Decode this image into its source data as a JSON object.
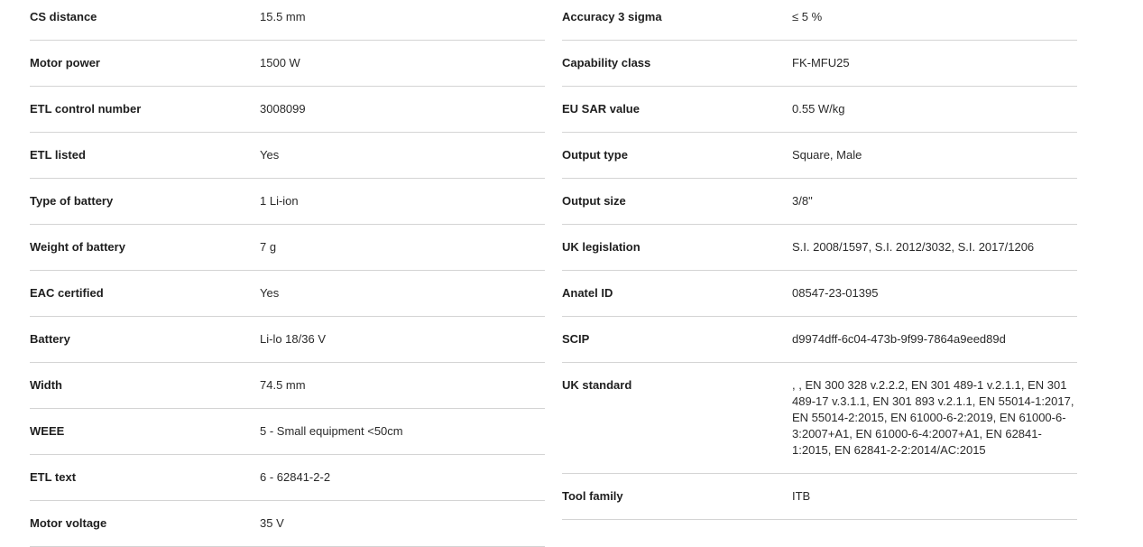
{
  "left": [
    {
      "label": "CS distance",
      "value": "15.5 mm"
    },
    {
      "label": "Motor power",
      "value": "1500 W"
    },
    {
      "label": "ETL control number",
      "value": "3008099"
    },
    {
      "label": "ETL listed",
      "value": "Yes"
    },
    {
      "label": "Type of battery",
      "value": "1 Li-ion"
    },
    {
      "label": "Weight of battery",
      "value": "7 g"
    },
    {
      "label": "EAC certified",
      "value": "Yes"
    },
    {
      "label": "Battery",
      "value": "Li-lo 18/36 V"
    },
    {
      "label": "Width",
      "value": "74.5 mm"
    },
    {
      "label": "WEEE",
      "value": "5 - Small equipment <50cm"
    },
    {
      "label": "ETL text",
      "value": "6 - 62841-2-2"
    },
    {
      "label": "Motor voltage",
      "value": "35 V"
    }
  ],
  "right": [
    {
      "label": "Accuracy 3 sigma",
      "value": "≤ 5 %"
    },
    {
      "label": "Capability class",
      "value": "FK-MFU25"
    },
    {
      "label": "EU SAR value",
      "value": "0.55 W/kg"
    },
    {
      "label": "Output type",
      "value": "Square, Male"
    },
    {
      "label": "Output size",
      "value": "3/8\""
    },
    {
      "label": "UK legislation",
      "value": "S.I. 2008/1597, S.I. 2012/3032, S.I. 2017/1206"
    },
    {
      "label": "Anatel ID",
      "value": "08547-23-01395"
    },
    {
      "label": "SCIP",
      "value": "d9974dff-6c04-473b-9f99-7864a9eed89d"
    },
    {
      "label": "UK standard",
      "value": ", , EN 300 328 v.2.2.2, EN 301 489-1 v.2.1.1, EN 301 489-17 v.3.1.1, EN 301 893 v.2.1.1, EN 55014-1:2017, EN 55014-2:2015, EN 61000-6-2:2019, EN 61000-6-3:2007+A1, EN 61000-6-4:2007+A1, EN 62841-1:2015, EN 62841-2-2:2014/AC:2015"
    },
    {
      "label": "Tool family",
      "value": "ITB"
    }
  ]
}
